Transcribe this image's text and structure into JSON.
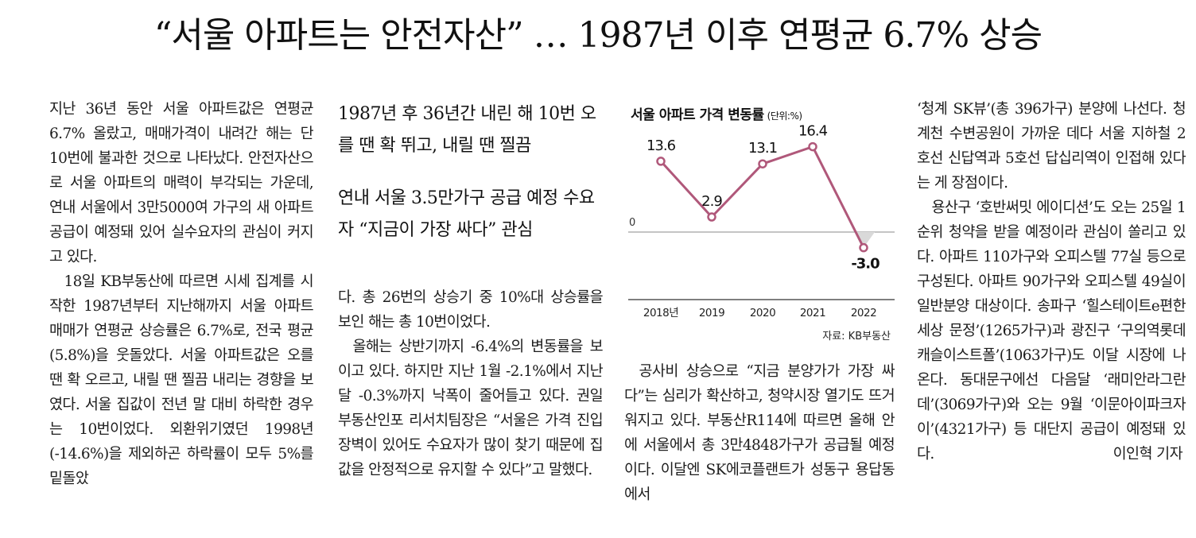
{
  "headline": "“서울 아파트는 안전자산” … 1987년 이후 연평균 6.7% 상승",
  "column1": [
    "지난 36년 동안 서울 아파트값은 연평균 6.7% 올랐고, 매매가격이 내려간 해는 단 10번에 불과한 것으로 나타났다. 안전자산으로 서울 아파트의 매력이 부각되는 가운데, 연내 서울에서 3만5000여 가구의 새 아파트 공급이 예정돼 있어 실수요자의 관심이 커지고 있다.",
    "18일 KB부동산에 따르면 시세 집계를 시작한 1987년부터 지난해까지 서울 아파트 매매가 연평균 상승률은 6.7%로, 전국 평균(5.8%)을 웃돌았다. 서울 아파트값은 오를 땐 확 오르고, 내릴 땐 찔끔 내리는 경향을 보였다. 서울 집값이 전년 말 대비 하락한 경우는 10번이었다. 외환위기였던 1998년(-14.6%)을 제외하곤 하락률이 모두 5%를 밑돌았"
  ],
  "subheads": [
    "1987년 후 36년간 내린 해 10번 오를 땐 확 뛰고, 내릴 땐 찔끔",
    "연내 서울 3.5만가구 공급 예정 수요자 “지금이 가장 싸다” 관심"
  ],
  "column2": [
    "다. 총 26번의 상승기 중 10%대 상승률을 보인 해는 총 10번이었다.",
    "올해는 상반기까지 -6.4%의 변동률을 보이고 있다. 하지만 지난 1월 -2.1%에서 지난달 -0.3%까지 낙폭이 줄어들고 있다. 권일 부동산인포 리서치팀장은 “서울은 가격 진입장벽이 있어도 수요자가 많이 찾기 때문에 집값을 안정적으로 유지할 수 있다”고 말했다."
  ],
  "column3": [
    "공사비 상승으로 “지금 분양가가 가장 싸다”는 심리가 확산하고, 청약시장 열기도 뜨거워지고 있다. 부동산R114에 따르면 올해 안에 서울에서 총 3만4848가구가 공급될 예정이다. 이달엔 SK에코플랜트가 성동구 용답동에서"
  ],
  "column4": [
    "‘청계 SK뷰’(총 396가구) 분양에 나선다. 청계천 수변공원이 가까운 데다 서울 지하철 2호선 신답역과 5호선 답십리역이 인접해 있다는 게 장점이다.",
    "용산구 ‘호반써밋 에이디션’도 오는 25일 1순위 청약을 받을 예정이라 관심이 쏠리고 있다. 아파트 110가구와 오피스텔 77실 등으로 구성된다. 아파트 90가구와 오피스텔 49실이 일반분양 대상이다. 송파구 ‘힐스테이트e편한세상 문정’(1265가구)과 광진구 ‘구의역롯데캐슬이스트폴’(1063가구)도 이달 시장에 나온다. 동대문구에선 다음달 ‘래미안라그란데’(3069가구)와 오는 9월 ‘이문아이파크자이’(4321가구) 등 대단지 공급이 예정돼 있다."
  ],
  "byline": "이인혁 기자",
  "chart_data": {
    "type": "line",
    "title": "서울 아파트 가격 변동률",
    "unit": "(단위:%)",
    "categories": [
      "2018년",
      "2019",
      "2020",
      "2021",
      "2022"
    ],
    "values": [
      13.6,
      2.9,
      13.1,
      16.4,
      -3.0
    ],
    "value_labels": [
      "13.6",
      "2.9",
      "13.1",
      "16.4",
      "-3.0"
    ],
    "zero_label": "0",
    "source": "자료: KB부동산",
    "ylim": [
      -3.0,
      16.4
    ],
    "line_color": "#b0587a",
    "point_color": "#b0587a",
    "negative_fill": "#d9d9d9"
  }
}
